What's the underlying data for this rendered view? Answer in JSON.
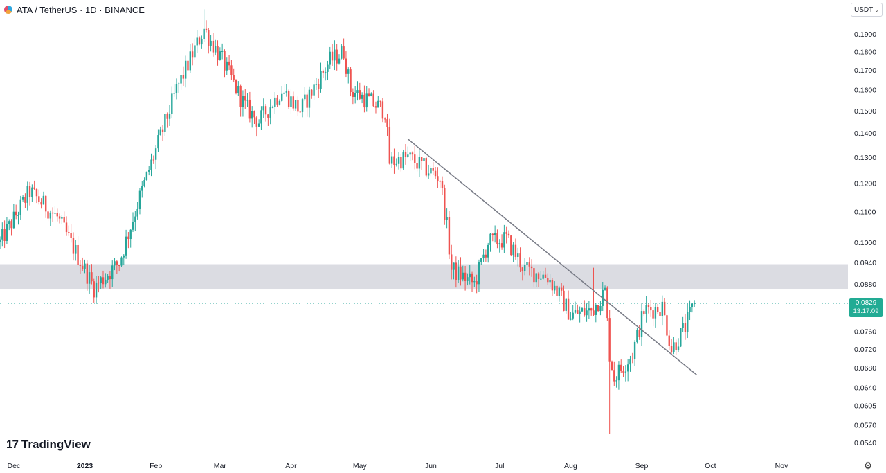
{
  "header": {
    "symbol": "ATA",
    "title": "ATA / TetherUS · 1D · BINANCE"
  },
  "currency_selector": {
    "label": "USDT"
  },
  "branding": {
    "logo_text": "TradingView",
    "logo_mark": "17"
  },
  "last_price": {
    "value": "0.0829",
    "countdown": "13:17:09"
  },
  "colors": {
    "up": "#26a69a",
    "down": "#ef5350",
    "zone": "#d9dae0",
    "trendline": "#787b86",
    "price_tag": "#22ab94"
  },
  "chart_data": {
    "type": "candlestick",
    "scale": "log",
    "y_tick_labels": [
      "0.1900",
      "0.1800",
      "0.1700",
      "0.1600",
      "0.1500",
      "0.1400",
      "0.1300",
      "0.1200",
      "0.1100",
      "0.1000",
      "0.0940",
      "0.0880",
      "0.0760",
      "0.0720",
      "0.0680",
      "0.0640",
      "0.0605",
      "0.0570",
      "0.0540"
    ],
    "x_tick_labels": [
      "Dec",
      "2023",
      "Feb",
      "Mar",
      "Apr",
      "May",
      "Jun",
      "Jul",
      "Aug",
      "Sep",
      "Oct",
      "Nov"
    ],
    "ylim": [
      0.0525,
      0.2
    ],
    "x_range": [
      "2022-11-25",
      "2023-11-30"
    ],
    "x_ticks": [
      {
        "label": "Dec",
        "date": "2022-12-01"
      },
      {
        "label": "2023",
        "date": "2023-01-01"
      },
      {
        "label": "Feb",
        "date": "2023-02-01"
      },
      {
        "label": "Mar",
        "date": "2023-03-01"
      },
      {
        "label": "Apr",
        "date": "2023-04-01"
      },
      {
        "label": "May",
        "date": "2023-05-01"
      },
      {
        "label": "Jun",
        "date": "2023-06-01"
      },
      {
        "label": "Jul",
        "date": "2023-07-01"
      },
      {
        "label": "Aug",
        "date": "2023-08-01"
      },
      {
        "label": "Sep",
        "date": "2023-09-01"
      },
      {
        "label": "Oct",
        "date": "2023-10-01"
      },
      {
        "label": "Nov",
        "date": "2023-11-01"
      }
    ],
    "anchors": [
      {
        "date": "2022-11-25",
        "close": 0.1
      },
      {
        "date": "2022-12-08",
        "close": 0.117
      },
      {
        "date": "2022-12-20",
        "close": 0.108
      },
      {
        "date": "2023-01-01",
        "close": 0.092
      },
      {
        "date": "2023-01-05",
        "close": 0.087
      },
      {
        "date": "2023-01-16",
        "close": 0.094
      },
      {
        "date": "2023-01-25",
        "close": 0.115
      },
      {
        "date": "2023-02-10",
        "close": 0.16
      },
      {
        "date": "2023-02-22",
        "close": 0.193
      },
      {
        "date": "2023-03-02",
        "close": 0.175
      },
      {
        "date": "2023-03-12",
        "close": 0.152
      },
      {
        "date": "2023-03-18",
        "close": 0.145
      },
      {
        "date": "2023-03-28",
        "close": 0.16
      },
      {
        "date": "2023-04-05",
        "close": 0.15
      },
      {
        "date": "2023-04-18",
        "close": 0.175
      },
      {
        "date": "2023-04-24",
        "close": 0.18
      },
      {
        "date": "2023-04-27",
        "close": 0.16
      },
      {
        "date": "2023-05-12",
        "close": 0.15
      },
      {
        "date": "2023-05-14",
        "close": 0.128
      },
      {
        "date": "2023-05-22",
        "close": 0.13
      },
      {
        "date": "2023-06-05",
        "close": 0.122
      },
      {
        "date": "2023-06-08",
        "close": 0.105
      },
      {
        "date": "2023-06-10",
        "close": 0.092
      },
      {
        "date": "2023-06-20",
        "close": 0.088
      },
      {
        "date": "2023-06-26",
        "close": 0.1
      },
      {
        "date": "2023-07-04",
        "close": 0.101
      },
      {
        "date": "2023-07-12",
        "close": 0.092
      },
      {
        "date": "2023-07-22",
        "close": 0.09
      },
      {
        "date": "2023-07-27",
        "close": 0.085
      },
      {
        "date": "2023-08-01",
        "close": 0.08
      },
      {
        "date": "2023-08-10",
        "close": 0.081
      },
      {
        "date": "2023-08-16",
        "close": 0.086
      },
      {
        "date": "2023-08-18",
        "close": 0.071
      },
      {
        "date": "2023-08-20",
        "close": 0.066
      },
      {
        "date": "2023-08-28",
        "close": 0.071
      },
      {
        "date": "2023-09-02",
        "close": 0.081
      },
      {
        "date": "2023-09-10",
        "close": 0.082
      },
      {
        "date": "2023-09-14",
        "close": 0.072
      },
      {
        "date": "2023-09-20",
        "close": 0.077
      },
      {
        "date": "2023-09-24",
        "close": 0.0829
      }
    ],
    "wick_extremes": [
      {
        "date": "2023-08-18",
        "low": 0.0555
      },
      {
        "date": "2023-08-11",
        "high": 0.0925
      },
      {
        "date": "2023-02-22",
        "high": 0.205
      }
    ],
    "support_zone": {
      "low": 0.0865,
      "high": 0.0935
    },
    "trendline": [
      {
        "date": "2023-05-22",
        "price": 0.1375
      },
      {
        "date": "2023-09-25",
        "price": 0.0665
      }
    ],
    "last_price_line": 0.0829
  }
}
